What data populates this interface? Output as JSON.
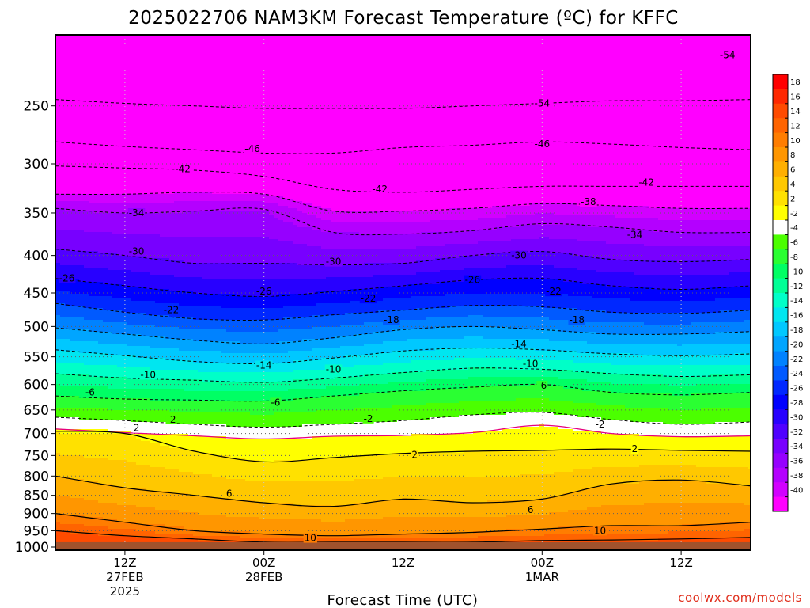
{
  "chart_data": {
    "type": "heatmap",
    "title": "2025022706 NAM3KM Forecast Temperature (ºC) for KFFC",
    "xlabel": "Forecast Time (UTC)",
    "ylabel": "",
    "y_scale": "log-pressure",
    "y_levels_hPa": [
      200,
      250,
      300,
      350,
      400,
      450,
      500,
      550,
      600,
      650,
      700,
      750,
      800,
      850,
      900,
      950,
      1000
    ],
    "y_tick_labels": [
      "250",
      "300",
      "350",
      "400",
      "450",
      "500",
      "550",
      "600",
      "650",
      "700",
      "750",
      "800",
      "850",
      "900",
      "950",
      "1000"
    ],
    "ground_level_hPa": 985,
    "x_range_hours_from_init": [
      0,
      60
    ],
    "x_ticks": [
      {
        "hour": 6,
        "lines": [
          "12Z",
          "27FEB",
          "2025"
        ]
      },
      {
        "hour": 18,
        "lines": [
          "00Z",
          "28FEB"
        ]
      },
      {
        "hour": 30,
        "lines": [
          "12Z"
        ]
      },
      {
        "hour": 42,
        "lines": [
          "00Z",
          "1MAR"
        ]
      },
      {
        "hour": 54,
        "lines": [
          "12Z"
        ]
      }
    ],
    "x_hours": [
      0,
      6,
      12,
      18,
      24,
      30,
      36,
      42,
      48,
      54,
      60
    ],
    "isotherm_levels_hPa": [
      {
        "temp": -54,
        "p": [
          245,
          248,
          250,
          252,
          252,
          252,
          250,
          248,
          246,
          246,
          245
        ]
      },
      {
        "temp": -46,
        "p": [
          280,
          284,
          287,
          290,
          290,
          285,
          283,
          280,
          282,
          285,
          287
        ]
      },
      {
        "temp": -42,
        "p": [
          302,
          304,
          306,
          312,
          325,
          328,
          325,
          322,
          322,
          322,
          322
        ]
      },
      {
        "temp": -38,
        "p": [
          330,
          330,
          328,
          330,
          348,
          348,
          345,
          340,
          342,
          345,
          345
        ]
      },
      {
        "temp": -34,
        "p": [
          345,
          350,
          348,
          346,
          372,
          374,
          370,
          362,
          366,
          372,
          372
        ]
      },
      {
        "temp": -30,
        "p": [
          392,
          400,
          410,
          410,
          412,
          410,
          400,
          395,
          405,
          408,
          405
        ]
      },
      {
        "temp": -26,
        "p": [
          430,
          440,
          450,
          455,
          448,
          440,
          432,
          430,
          440,
          445,
          440
        ]
      },
      {
        "temp": -22,
        "p": [
          465,
          478,
          488,
          490,
          482,
          475,
          468,
          470,
          478,
          480,
          475
        ]
      },
      {
        "temp": -18,
        "p": [
          502,
          512,
          522,
          528,
          518,
          505,
          500,
          505,
          512,
          512,
          508
        ]
      },
      {
        "temp": -14,
        "p": [
          538,
          548,
          558,
          562,
          552,
          540,
          535,
          538,
          545,
          548,
          545
        ]
      },
      {
        "temp": -10,
        "p": [
          580,
          588,
          592,
          596,
          588,
          578,
          570,
          572,
          580,
          585,
          582
        ]
      },
      {
        "temp": -6,
        "p": [
          622,
          628,
          630,
          632,
          622,
          612,
          605,
          600,
          615,
          620,
          615
        ]
      },
      {
        "temp": -2,
        "p": [
          665,
          672,
          680,
          686,
          680,
          672,
          660,
          655,
          670,
          680,
          675
        ]
      },
      {
        "temp": 0,
        "p": [
          690,
          698,
          705,
          712,
          706,
          704,
          698,
          682,
          700,
          707,
          705
        ]
      },
      {
        "temp": 2,
        "p": [
          695,
          700,
          740,
          765,
          755,
          745,
          740,
          738,
          735,
          738,
          740
        ]
      },
      {
        "temp": 6,
        "p": [
          800,
          830,
          850,
          870,
          880,
          860,
          870,
          860,
          820,
          810,
          825
        ]
      },
      {
        "temp": 10,
        "p": [
          900,
          925,
          950,
          960,
          965,
          960,
          955,
          945,
          935,
          935,
          925
        ]
      },
      {
        "temp": 14,
        "p": [
          950,
          965,
          975,
          985,
          985,
          985,
          985,
          980,
          978,
          975,
          970
        ]
      }
    ],
    "contour_labels": [
      {
        "text": "-54",
        "hour": 58,
        "p": 213
      },
      {
        "text": "-54",
        "hour": 42,
        "p": 248
      },
      {
        "text": "-46",
        "hour": 17,
        "p": 286
      },
      {
        "text": "-46",
        "hour": 42,
        "p": 282
      },
      {
        "text": "-42",
        "hour": 11,
        "p": 305
      },
      {
        "text": "-42",
        "hour": 28,
        "p": 325
      },
      {
        "text": "-42",
        "hour": 51,
        "p": 318
      },
      {
        "text": "-38",
        "hour": 46,
        "p": 338
      },
      {
        "text": "-34",
        "hour": 7,
        "p": 350
      },
      {
        "text": "-34",
        "hour": 50,
        "p": 375
      },
      {
        "text": "-30",
        "hour": 7,
        "p": 395
      },
      {
        "text": "-30",
        "hour": 24,
        "p": 408
      },
      {
        "text": "-30",
        "hour": 40,
        "p": 400
      },
      {
        "text": "-26",
        "hour": 1,
        "p": 430
      },
      {
        "text": "-26",
        "hour": 18,
        "p": 448
      },
      {
        "text": "-26",
        "hour": 36,
        "p": 432
      },
      {
        "text": "-22",
        "hour": 10,
        "p": 475
      },
      {
        "text": "-22",
        "hour": 27,
        "p": 458
      },
      {
        "text": "-22",
        "hour": 43,
        "p": 448
      },
      {
        "text": "-18",
        "hour": 29,
        "p": 490
      },
      {
        "text": "-18",
        "hour": 45,
        "p": 490
      },
      {
        "text": "-14",
        "hour": 18,
        "p": 565
      },
      {
        "text": "-14",
        "hour": 40,
        "p": 528
      },
      {
        "text": "-10",
        "hour": 8,
        "p": 582
      },
      {
        "text": "-10",
        "hour": 24,
        "p": 572
      },
      {
        "text": "-10",
        "hour": 41,
        "p": 562
      },
      {
        "text": "-6",
        "hour": 3,
        "p": 615
      },
      {
        "text": "-6",
        "hour": 19,
        "p": 635
      },
      {
        "text": "-6",
        "hour": 42,
        "p": 602
      },
      {
        "text": "-2",
        "hour": 10,
        "p": 670
      },
      {
        "text": "-2",
        "hour": 27,
        "p": 668
      },
      {
        "text": "-2",
        "hour": 47,
        "p": 680
      },
      {
        "text": "2",
        "hour": 7,
        "p": 688
      },
      {
        "text": "2",
        "hour": 31,
        "p": 748
      },
      {
        "text": "2",
        "hour": 50,
        "p": 735
      },
      {
        "text": "6",
        "hour": 15,
        "p": 845
      },
      {
        "text": "6",
        "hour": 41,
        "p": 890
      },
      {
        "text": "10",
        "hour": 22,
        "p": 972
      },
      {
        "text": "10",
        "hour": 47,
        "p": 950
      }
    ],
    "colorbar": {
      "labels": [
        "18",
        "16",
        "14",
        "12",
        "10",
        "8",
        "6",
        "4",
        "2",
        "-2",
        "-4",
        "-6",
        "-8",
        "-10",
        "-12",
        "-14",
        "-16",
        "-18",
        "-20",
        "-22",
        "-24",
        "-26",
        "-28",
        "-30",
        "-32",
        "-34",
        "-36",
        "-38",
        "-40"
      ],
      "colors": [
        "#ff0000",
        "#ff2800",
        "#ff4b00",
        "#ff6400",
        "#ff7d00",
        "#ff9600",
        "#ffaf00",
        "#ffc800",
        "#ffe100",
        "#ffff00",
        "#ffffff",
        "#4bff00",
        "#2aff32",
        "#00ff64",
        "#00ff96",
        "#00ffc8",
        "#00e6f0",
        "#00c8ff",
        "#00a5ff",
        "#0082ff",
        "#005aff",
        "#0028ff",
        "#0000ff",
        "#2800ff",
        "#5000ff",
        "#7800ff",
        "#9600ff",
        "#b400ff",
        "#d200ff",
        "#ff00ff"
      ],
      "color_breaks_degC": [
        18,
        16,
        14,
        12,
        10,
        8,
        6,
        4,
        2,
        0,
        -2,
        -4,
        -6,
        -8,
        -10,
        -12,
        -14,
        -16,
        -18,
        -20,
        -22,
        -24,
        -26,
        -28,
        -30,
        -32,
        -34,
        -36,
        -38,
        -40
      ],
      "first_color_above": 18,
      "last_color_below": -40
    },
    "ground_color": "#a0522d",
    "freezing_line_color": "#e6007e",
    "grid": true,
    "legend_placement": "right"
  },
  "footer": {
    "credit": "coolwx.com/models"
  }
}
